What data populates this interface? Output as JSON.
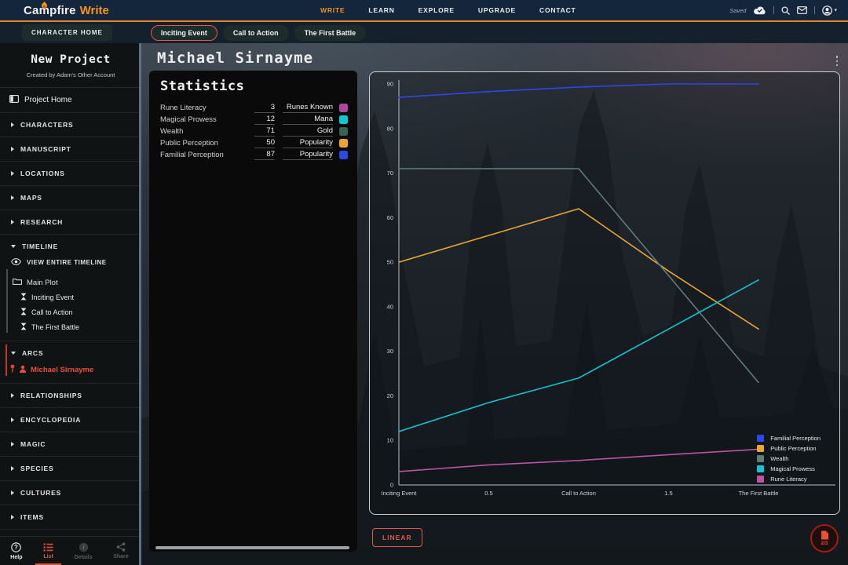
{
  "navbar": {
    "logo": {
      "campfire": "Campfire",
      "write": "Write"
    },
    "links": [
      {
        "label": "WRITE",
        "active": true
      },
      {
        "label": "LEARN",
        "active": false
      },
      {
        "label": "EXPLORE",
        "active": false
      },
      {
        "label": "UPGRADE",
        "active": false
      },
      {
        "label": "CONTACT",
        "active": false
      }
    ],
    "saved_label": "Saved",
    "icons": [
      "cloud-check-icon",
      "search-icon",
      "mail-icon",
      "account-icon",
      "chevron-down-icon"
    ]
  },
  "toolbar": {
    "character_home_label": "CHARACTER HOME",
    "tabs": [
      {
        "label": "Inciting Event",
        "active": true
      },
      {
        "label": "Call to Action",
        "active": false
      },
      {
        "label": "The First Battle",
        "active": false
      }
    ]
  },
  "sidebar": {
    "project_name": "New Project",
    "project_subtitle": "Created by Adam's Other Account",
    "project_home_label": "Project Home",
    "sections_top": [
      "CHARACTERS",
      "MANUSCRIPT",
      "LOCATIONS",
      "MAPS",
      "RESEARCH"
    ],
    "timeline": {
      "label": "TIMELINE",
      "view_entire_label": "VIEW ENTIRE TIMELINE",
      "plot_name": "Main Plot",
      "events": [
        "Inciting Event",
        "Call to Action",
        "The First Battle"
      ]
    },
    "arcs": {
      "label": "ARCS",
      "items": [
        {
          "label": "Michael Sirnayme",
          "active": true
        }
      ]
    },
    "sections_bottom": [
      "RELATIONSHIPS",
      "ENCYCLOPEDIA",
      "MAGIC",
      "SPECIES",
      "CULTURES",
      "ITEMS"
    ],
    "footer": [
      {
        "label": "Help",
        "state": "normal"
      },
      {
        "label": "List",
        "state": "active"
      },
      {
        "label": "Details",
        "state": "disabled"
      },
      {
        "label": "Share",
        "state": "disabled"
      }
    ]
  },
  "main": {
    "title": "Michael Sirnayme",
    "statistics": {
      "heading": "Statistics",
      "rows": [
        {
          "label": "Rune Literacy",
          "value": "3",
          "unit": "Runes Known",
          "color": "#a8499c"
        },
        {
          "label": "Magical Prowess",
          "value": "12",
          "unit": "Mana",
          "color": "#11c6cf"
        },
        {
          "label": "Wealth",
          "value": "71",
          "unit": "Gold",
          "color": "#3c6054"
        },
        {
          "label": "Public Perception",
          "value": "50",
          "unit": "Popularity",
          "color": "#eaa42f"
        },
        {
          "label": "Familial Perception",
          "value": "87",
          "unit": "Popularity",
          "color": "#2f45ea"
        }
      ]
    },
    "linear_button_label": "LINEAR",
    "page_counter": "2/3"
  },
  "chart_data": {
    "type": "line",
    "x": [
      0,
      0.5,
      1,
      1.5,
      2
    ],
    "x_tick_labels": [
      "Inciting Event",
      "0.5",
      "Call to Action",
      "1.5",
      "The First Battle"
    ],
    "ylim": [
      0,
      90
    ],
    "y_ticks": [
      0,
      10,
      20,
      30,
      40,
      50,
      60,
      70,
      80,
      90
    ],
    "grid": false,
    "legend_position": "bottom-right",
    "series": [
      {
        "name": "Familial Perception",
        "color": "#2f45ea",
        "values": [
          87,
          88.3,
          89.3,
          90,
          90
        ]
      },
      {
        "name": "Public Perception",
        "color": "#e9a52f",
        "values": [
          50,
          56,
          62,
          48,
          35
        ]
      },
      {
        "name": "Wealth",
        "color": "#5f7d78",
        "values": [
          71,
          71,
          71,
          47,
          23
        ]
      },
      {
        "name": "Magical Prowess",
        "color": "#17c3cf",
        "values": [
          12,
          18.5,
          24,
          35,
          46
        ]
      },
      {
        "name": "Rune Literacy",
        "color": "#bd53a0",
        "values": [
          3,
          4.5,
          5.5,
          6.8,
          8
        ]
      }
    ]
  }
}
